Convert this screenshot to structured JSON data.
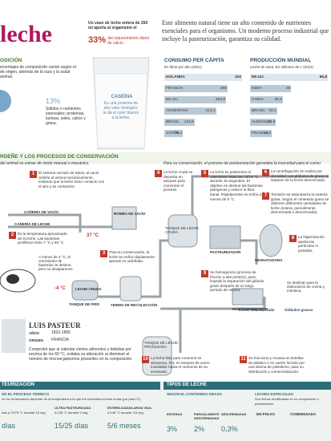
{
  "header": {
    "title": "leche",
    "intro": "Este alimento natural tiene un alto contenido de nutrientes esenciales para el organismo. Un moderno proceso industrial que incluye la pasteurización, garantiza su calidad."
  },
  "composition": {
    "title": "OSICIÓN",
    "text": "ercentajes de composición varían según el de origen, además de la raza y la salud animal.",
    "percent": "13%",
    "percent_text": "Sólidos o nutrientes esenciales: proteínas, lactosa, sales, calcio y grasa."
  },
  "glass": {
    "text": "Un vaso de leche entera de 250 ml aporta al organismo el",
    "percent": "33%",
    "percent_text": "del requerimiento diario de calcio.",
    "casein_title": "CASEÍNA",
    "casein_text": "Es una proteína de alto valor biológico; le da el color blanco a la leche."
  },
  "charts": [
    {
      "title": "CONSUMO PER CÁPITA",
      "subtitle": "En litros por año (2011)",
      "categories": [
        "HOLANDA",
        "FRANCIA",
        "EE.UU.",
        "ARGENTINA",
        "BRASIL",
        "JAPÓN"
      ],
      "values": [
        320,
        260,
        253.8,
        213.1,
        124.6,
        76.4
      ],
      "value_labels": [
        "320",
        "260",
        "253,8",
        "213,1",
        "124,6",
        "76,4"
      ]
    },
    {
      "title": "PRODUCCIÓN MUNDIAL",
      "subtitle": "Leche de vaca. En millones de t. (2011)",
      "categories": [
        "EE.UU.",
        "INDIA",
        "CHINA",
        "BRASIL",
        "ALEMANIA",
        "FRANCIA"
      ],
      "values": [
        86.8,
        46,
        36.5,
        30.1,
        28.9,
        24.3
      ],
      "value_labels": [
        "86,8",
        "46",
        "36,5",
        "30,1",
        "28,9",
        "24,3"
      ]
    }
  ],
  "process": {
    "title": "RDEÑE Y LOS PROCESOS DE CONSERVACIÓN",
    "subtitle": "del animal se extrae de modo manual o mecánico.",
    "subtitle_right": "Para su conservación, el proceso de pasteurización garantiza la inocuidad para el consu",
    "steps": [
      {
        "number": "1",
        "text": "El sistema cerrado de tubos, al vacío ordeña al animal mecánicamente, evitando que la leche tome contacto con el aire y se contamine."
      },
      {
        "number": "2",
        "text": "Es la temperatura aproximada de la leche. Las bacterias proliferan entre 7 °C y 60 °C."
      },
      {
        "number": "3",
        "text": "Para su conservación, la leche se enfría rápidamente apenas es ordeñada."
      },
      {
        "number": "4",
        "text": "La leche cruda se deposita en tanques para comenzar el proceso."
      },
      {
        "number": "5",
        "text": "La leche se pasteuriza al calentarse hasta los 72/78 °C durante 15 segundos. El objetivo es destruir las bacterias patógenas y reducir la flora banal. Rápidamente se enfría a menos de 5 °C."
      },
      {
        "number": "6",
        "text": "La centrifugación se realiza por densidad. Los glóbulos de grasa se separan de la leche descremada."
      },
      {
        "number": "7",
        "text": "Tomisión se estandariza la materia grasa. Según el contenido graso se obtienen diferentes variedades de leche (entera, parcialmente descremada o descremada)."
      },
      {
        "number": "8",
        "text": "La higienización aparta las partículas m pesadas."
      },
      {
        "number": "9",
        "text": "Se homogeniza (proceso de fricción a alta presión), para impedir la separación del glóbulo graso después de un largo período de reposo."
      },
      {
        "number": "10",
        "text": "La leche lista para consumir se almacena, fría, en tanques de acero inoxidable hasta el momento de su envasado."
      },
      {
        "number": "11",
        "text": "Se fracciona y envasa en botellas de plástico o en cartón forrado por una lámina de polietileno, para su distribución y comercialización."
      }
    ],
    "labels": {
      "vacuum_pipe": "CAÑERÍA DE VACÍO",
      "vacuum_pump": "BOMBA DE VACÍO",
      "milk_pipe": "CAÑERÍA DE LECHE",
      "temp_warm": "37 °C",
      "temp_cold": "-4 °C",
      "cold_note": "A menos de 4 °C, el crecimiento de bacterias se detiene, pero no desaparecen.",
      "raw_milk": "LECHE CRUDA",
      "cold_tank": "TANQUE DE FRÍO",
      "collection": "TERMO DE RECOLECCIÓN",
      "raw_tank": "TANQUE DE LECHE CRUDA",
      "pasteurizer": "PASTEURIZADOR",
      "separator": "DESNATADORA",
      "homogenizer": "HOMOGENEIZADOR",
      "processed_tank": "TANQUE DE LECHE PROCESADA",
      "standardized": "Leche estandarizada",
      "fat": "Glóbulos grasos",
      "cream_note": "Se destinan para la elaboración de crema y manteca."
    }
  },
  "pasteur": {
    "name": "LUIS PASTEUR",
    "years_label": "AÑOS",
    "years": "1822-1895",
    "origin_label": "ORIGEN",
    "origin": "FRANCIA",
    "text": "Comprobó que al calentar ciertos alimentos y bebidas por encima de los 60 °C, evitaba su alteración al disminuir el número de microorganismos presentes en la composición."
  },
  "footer": {
    "left_title": "TEURIZACIÓN",
    "right_title": "TIPOS DE LECHE",
    "thermal": {
      "title": "ÚN EL PROCESO TÉRMICO",
      "text": "ón de conservación depende de la temperatura a la que fue sometida la leche cruda (por paso 5°).",
      "items": [
        {
          "name": "",
          "text": "ada a 72/78 °C durante 15 seg.",
          "time": "días"
        },
        {
          "name": "ULTRA PASTEURIZADA",
          "text": "A 138 °C durante 2 seg.",
          "time": "15/25 días"
        },
        {
          "name": "ESTERILIZADA/LARGA VIDA",
          "text": "A 146 °C durante 3/4 seg.",
          "time": "5/6 meses"
        }
      ]
    },
    "fat": {
      "title": "SEGÚN EL CONTENIDO GRASO",
      "types": [
        "ENTERAS",
        "PARCIALMENTE DESCREMADAS",
        "DESCREMADAS"
      ],
      "values": [
        "3%",
        "2%",
        "0,3%"
      ]
    },
    "special": {
      "title": "LECHES ESPECIALES",
      "text": "Son leches modificadas en su composición o presentación.",
      "types": [
        "EN POLVO",
        "CONDENSADA"
      ]
    }
  }
}
